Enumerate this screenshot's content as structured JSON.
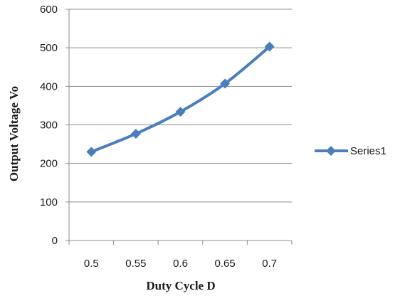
{
  "chart_data": {
    "type": "line",
    "x": [
      0.5,
      0.55,
      0.6,
      0.65,
      0.7
    ],
    "x_tick_labels": [
      "0.5",
      "0.55",
      "0.6",
      "0.65",
      "0.7"
    ],
    "y_tick_labels": [
      "0",
      "100",
      "200",
      "300",
      "400",
      "500",
      "600"
    ],
    "series": [
      {
        "name": "Series1",
        "values": [
          230,
          277,
          334,
          407,
          503
        ],
        "color": "#4a7ebb",
        "marker": "diamond"
      }
    ],
    "xlabel": "Duty Cycle D",
    "ylabel": "Output  Voltage Vo",
    "ylim": [
      0,
      600
    ],
    "y_ticks": [
      0,
      100,
      200,
      300,
      400,
      500,
      600
    ],
    "grid": "horizontal",
    "legend_position": "right"
  }
}
